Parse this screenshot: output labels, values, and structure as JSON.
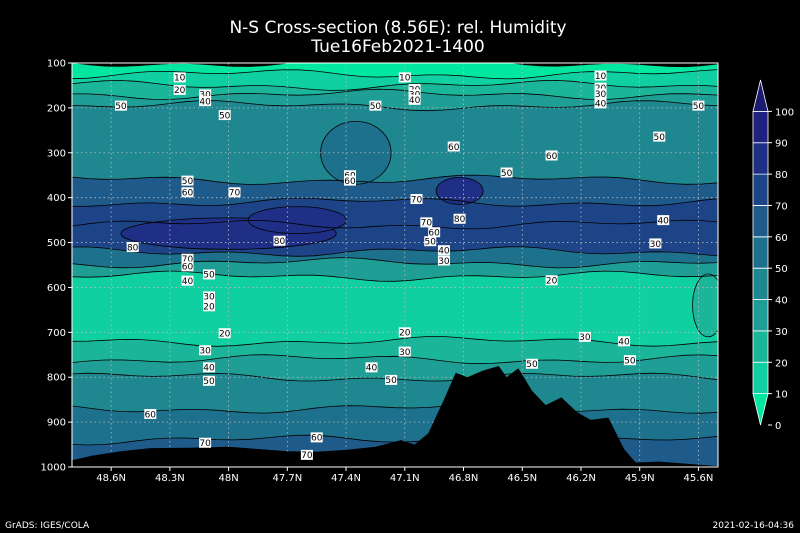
{
  "chart_data": {
    "type": "heatmap",
    "title": "N-S Cross-section (8.56E): rel. Humidity",
    "subtitle": "Tue16Feb2021-1400",
    "x_ticks": [
      "48.6N",
      "48.3N",
      "48N",
      "47.7N",
      "47.4N",
      "47.1N",
      "46.8N",
      "46.5N",
      "46.2N",
      "45.9N",
      "45.6N"
    ],
    "x_range": [
      48.8,
      45.5
    ],
    "y_ticks": [
      100,
      200,
      300,
      400,
      500,
      600,
      700,
      800,
      900,
      1000
    ],
    "y_range": [
      100,
      1000
    ],
    "y_scale": "linear-pressure-inverted",
    "grid": true,
    "legend": {
      "placement": "right",
      "levels": [
        0,
        10,
        20,
        30,
        40,
        50,
        60,
        70,
        80,
        90,
        100
      ],
      "colors": [
        "#00e8a0",
        "#10cfa0",
        "#1bb69a",
        "#1f9e96",
        "#1f8790",
        "#1e718c",
        "#1e5a8a",
        "#1e4488",
        "#1f2f86",
        "#202080",
        "#1a1a70"
      ]
    },
    "bands": [
      {
        "p_top": 100,
        "p_bot": 125,
        "value": 5
      },
      {
        "p_top": 125,
        "p_bot": 150,
        "value": 15
      },
      {
        "p_top": 150,
        "p_bot": 170,
        "value": 25
      },
      {
        "p_top": 170,
        "p_bot": 195,
        "value": 35
      },
      {
        "p_top": 195,
        "p_bot": 360,
        "value": 45
      },
      {
        "p_top": 360,
        "p_bot": 410,
        "value": 65
      },
      {
        "p_top": 410,
        "p_bot": 460,
        "value": 75
      },
      {
        "p_top": 460,
        "p_bot": 520,
        "value": 75
      },
      {
        "p_top": 520,
        "p_bot": 545,
        "value": 55
      },
      {
        "p_top": 545,
        "p_bot": 575,
        "value": 35
      },
      {
        "p_top": 575,
        "p_bot": 720,
        "value": 15
      },
      {
        "p_top": 720,
        "p_bot": 760,
        "value": 25
      },
      {
        "p_top": 760,
        "p_bot": 800,
        "value": 35
      },
      {
        "p_top": 800,
        "p_bot": 870,
        "value": 45
      },
      {
        "p_top": 870,
        "p_bot": 940,
        "value": 55
      },
      {
        "p_top": 940,
        "p_bot": 1000,
        "value": 65
      }
    ],
    "contour_lines": [
      {
        "p": 125,
        "level": 10
      },
      {
        "p": 150,
        "level": 20
      },
      {
        "p": 170,
        "level": 30
      },
      {
        "p": 195,
        "level": 40
      },
      {
        "p": 360,
        "level": 50
      },
      {
        "p": 410,
        "level": 60
      },
      {
        "p": 460,
        "level": 70
      },
      {
        "p": 520,
        "level": 60
      },
      {
        "p": 545,
        "level": 40
      },
      {
        "p": 575,
        "level": 30
      },
      {
        "p": 720,
        "level": 20
      },
      {
        "p": 760,
        "level": 30
      },
      {
        "p": 800,
        "level": 40
      },
      {
        "p": 870,
        "level": 50
      },
      {
        "p": 940,
        "level": 60
      }
    ],
    "patches": [
      {
        "lat": 46.82,
        "p": 385,
        "r_lat": 0.12,
        "r_p": 30,
        "value": 85
      },
      {
        "lat": 48.0,
        "p": 480,
        "r_lat": 0.55,
        "r_p": 35,
        "value": 82
      },
      {
        "lat": 47.65,
        "p": 450,
        "r_lat": 0.25,
        "r_p": 30,
        "value": 80
      },
      {
        "lat": 47.35,
        "p": 300,
        "r_lat": 0.18,
        "r_p": 70,
        "value": 55
      },
      {
        "lat": 45.55,
        "p": 640,
        "r_lat": 0.08,
        "r_p": 70,
        "value": 25
      }
    ],
    "contour_labels": [
      {
        "lat": 48.25,
        "p": 132,
        "text": "10"
      },
      {
        "lat": 47.1,
        "p": 132,
        "text": "10"
      },
      {
        "lat": 46.1,
        "p": 128,
        "text": "10"
      },
      {
        "lat": 48.25,
        "p": 160,
        "text": "20"
      },
      {
        "lat": 47.05,
        "p": 158,
        "text": "20"
      },
      {
        "lat": 46.1,
        "p": 155,
        "text": "20"
      },
      {
        "lat": 48.12,
        "p": 170,
        "text": "30"
      },
      {
        "lat": 47.05,
        "p": 170,
        "text": "30"
      },
      {
        "lat": 46.1,
        "p": 168,
        "text": "30"
      },
      {
        "lat": 48.12,
        "p": 185,
        "text": "40"
      },
      {
        "lat": 47.05,
        "p": 182,
        "text": "40"
      },
      {
        "lat": 46.1,
        "p": 190,
        "text": "40"
      },
      {
        "lat": 48.55,
        "p": 195,
        "text": "50"
      },
      {
        "lat": 48.02,
        "p": 216,
        "text": "50"
      },
      {
        "lat": 47.25,
        "p": 195,
        "text": "50"
      },
      {
        "lat": 45.6,
        "p": 195,
        "text": "50"
      },
      {
        "lat": 45.8,
        "p": 264,
        "text": "50"
      },
      {
        "lat": 46.85,
        "p": 286,
        "text": "60"
      },
      {
        "lat": 46.58,
        "p": 344,
        "text": "50"
      },
      {
        "lat": 46.35,
        "p": 306,
        "text": "60"
      },
      {
        "lat": 47.38,
        "p": 350,
        "text": "60"
      },
      {
        "lat": 47.38,
        "p": 362,
        "text": "60"
      },
      {
        "lat": 48.21,
        "p": 362,
        "text": "50"
      },
      {
        "lat": 48.21,
        "p": 388,
        "text": "60"
      },
      {
        "lat": 47.97,
        "p": 388,
        "text": "70"
      },
      {
        "lat": 47.04,
        "p": 403,
        "text": "70"
      },
      {
        "lat": 46.82,
        "p": 447,
        "text": "80"
      },
      {
        "lat": 46.99,
        "p": 455,
        "text": "70"
      },
      {
        "lat": 46.95,
        "p": 477,
        "text": "60"
      },
      {
        "lat": 46.97,
        "p": 497,
        "text": "50"
      },
      {
        "lat": 46.9,
        "p": 517,
        "text": "40"
      },
      {
        "lat": 46.9,
        "p": 540,
        "text": "30"
      },
      {
        "lat": 45.78,
        "p": 450,
        "text": "40"
      },
      {
        "lat": 45.82,
        "p": 502,
        "text": "30"
      },
      {
        "lat": 48.49,
        "p": 510,
        "text": "80"
      },
      {
        "lat": 47.74,
        "p": 496,
        "text": "80"
      },
      {
        "lat": 48.21,
        "p": 536,
        "text": "70"
      },
      {
        "lat": 48.21,
        "p": 553,
        "text": "60"
      },
      {
        "lat": 48.1,
        "p": 571,
        "text": "50"
      },
      {
        "lat": 48.21,
        "p": 585,
        "text": "40"
      },
      {
        "lat": 48.1,
        "p": 620,
        "text": "30"
      },
      {
        "lat": 48.1,
        "p": 642,
        "text": "20"
      },
      {
        "lat": 46.35,
        "p": 584,
        "text": "20"
      },
      {
        "lat": 48.02,
        "p": 702,
        "text": "20"
      },
      {
        "lat": 47.1,
        "p": 700,
        "text": "20"
      },
      {
        "lat": 46.18,
        "p": 710,
        "text": "30"
      },
      {
        "lat": 45.98,
        "p": 720,
        "text": "40"
      },
      {
        "lat": 48.12,
        "p": 740,
        "text": "30"
      },
      {
        "lat": 47.1,
        "p": 743,
        "text": "30"
      },
      {
        "lat": 48.1,
        "p": 778,
        "text": "40"
      },
      {
        "lat": 47.27,
        "p": 778,
        "text": "40"
      },
      {
        "lat": 48.1,
        "p": 808,
        "text": "50"
      },
      {
        "lat": 47.17,
        "p": 806,
        "text": "50"
      },
      {
        "lat": 46.45,
        "p": 770,
        "text": "50"
      },
      {
        "lat": 45.95,
        "p": 762,
        "text": "50"
      },
      {
        "lat": 48.4,
        "p": 882,
        "text": "60"
      },
      {
        "lat": 47.55,
        "p": 934,
        "text": "60"
      },
      {
        "lat": 48.12,
        "p": 946,
        "text": "70"
      },
      {
        "lat": 47.6,
        "p": 973,
        "text": "70"
      }
    ],
    "terrain": [
      [
        48.8,
        985
      ],
      [
        48.7,
        975
      ],
      [
        48.55,
        965
      ],
      [
        48.4,
        958
      ],
      [
        48.2,
        957
      ],
      [
        48.0,
        955
      ],
      [
        47.85,
        960
      ],
      [
        47.7,
        965
      ],
      [
        47.55,
        966
      ],
      [
        47.4,
        962
      ],
      [
        47.25,
        955
      ],
      [
        47.12,
        940
      ],
      [
        47.05,
        950
      ],
      [
        46.98,
        925
      ],
      [
        46.9,
        850
      ],
      [
        46.84,
        790
      ],
      [
        46.78,
        800
      ],
      [
        46.7,
        785
      ],
      [
        46.62,
        775
      ],
      [
        46.58,
        800
      ],
      [
        46.52,
        780
      ],
      [
        46.45,
        830
      ],
      [
        46.38,
        862
      ],
      [
        46.3,
        845
      ],
      [
        46.22,
        878
      ],
      [
        46.15,
        895
      ],
      [
        46.06,
        890
      ],
      [
        45.98,
        960
      ],
      [
        45.92,
        990
      ],
      [
        45.8,
        988
      ],
      [
        45.65,
        993
      ],
      [
        45.5,
        998
      ]
    ]
  },
  "footer": {
    "left": "GrADS: IGES/COLA",
    "right": "2021-02-16-04:36"
  }
}
